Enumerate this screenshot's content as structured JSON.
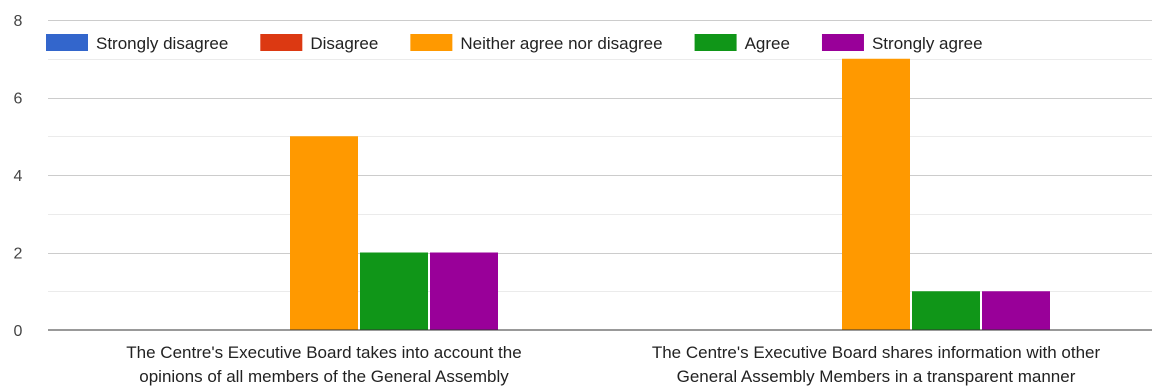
{
  "chart_data": {
    "type": "bar",
    "categories": [
      [
        "The Centre's Executive Board takes into account the",
        "opinions of all members of the General Assembly"
      ],
      [
        "The Centre's Executive Board shares information with other",
        "General Assembly Members in a transparent manner"
      ]
    ],
    "series": [
      {
        "name": "Strongly disagree",
        "color": "#3366cc",
        "values": [
          0,
          0
        ]
      },
      {
        "name": "Disagree",
        "color": "#dc3912",
        "values": [
          0,
          0
        ]
      },
      {
        "name": "Neither agree nor disagree",
        "color": "#ff9900",
        "values": [
          5,
          7
        ]
      },
      {
        "name": "Agree",
        "color": "#109618",
        "values": [
          2,
          1
        ]
      },
      {
        "name": "Strongly agree",
        "color": "#990099",
        "values": [
          2,
          1
        ]
      }
    ],
    "ylim": [
      0,
      8
    ],
    "yticks": [
      0,
      2,
      4,
      6,
      8
    ],
    "grid": true,
    "legend_position": "top"
  }
}
